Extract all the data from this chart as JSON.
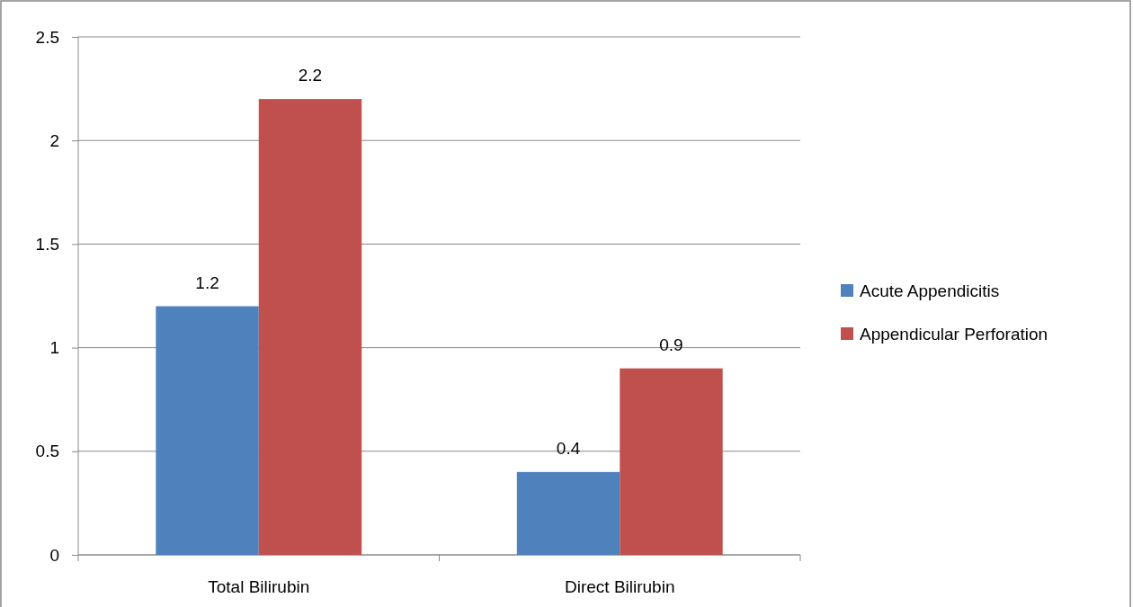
{
  "chart_data": {
    "type": "bar",
    "categories": [
      "Total Bilirubin",
      "Direct Bilirubin"
    ],
    "series": [
      {
        "name": "Acute Appendicitis",
        "color": "#4f81bd",
        "values": [
          1.2,
          0.4
        ]
      },
      {
        "name": "Appendicular Perforation",
        "color": "#c0504d",
        "values": [
          2.2,
          0.9
        ]
      }
    ],
    "ylim": [
      0,
      2.5
    ],
    "yticks": [
      0,
      0.5,
      1,
      1.5,
      2,
      2.5
    ],
    "grid": "y",
    "legend": "right",
    "data_labels": true
  }
}
